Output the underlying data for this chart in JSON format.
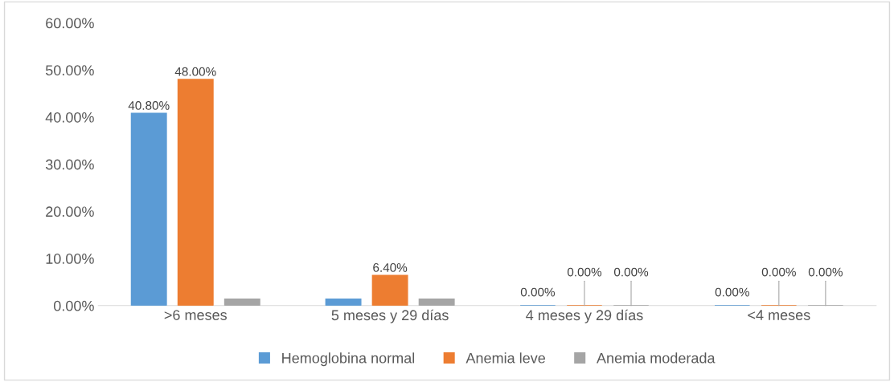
{
  "chart_data": {
    "type": "bar",
    "categories": [
      ">6 meses",
      "5 meses y 29 días",
      "4 meses y 29 días",
      "<4 meses"
    ],
    "series": [
      {
        "name": "Hemoglobina normal",
        "color": "#5b9bd5",
        "values": [
          40.8,
          1.4,
          0,
          0
        ],
        "value_labels": [
          "40.80%",
          null,
          "0.00%",
          "0.00%"
        ]
      },
      {
        "name": "Anemia leve",
        "color": "#ed7d31",
        "values": [
          48.0,
          6.4,
          0,
          0
        ],
        "value_labels": [
          "48.00%",
          "6.40%",
          "0.00%",
          "0.00%"
        ]
      },
      {
        "name": "Anemia moderada",
        "color": "#a5a5a5",
        "values": [
          1.4,
          1.4,
          0,
          0
        ],
        "value_labels": [
          null,
          null,
          "0.00%",
          "0.00%"
        ]
      }
    ],
    "ylim": [
      0,
      60
    ],
    "yticks": [
      {
        "value": 0,
        "label": "0.00%"
      },
      {
        "value": 10,
        "label": "10.00%"
      },
      {
        "value": 20,
        "label": "20.00%"
      },
      {
        "value": 30,
        "label": "30.00%"
      },
      {
        "value": 40,
        "label": "40.00%"
      },
      {
        "value": 50,
        "label": "50.00%"
      },
      {
        "value": 60,
        "label": "60.00%"
      }
    ],
    "grid": false,
    "legend": "bottom"
  }
}
